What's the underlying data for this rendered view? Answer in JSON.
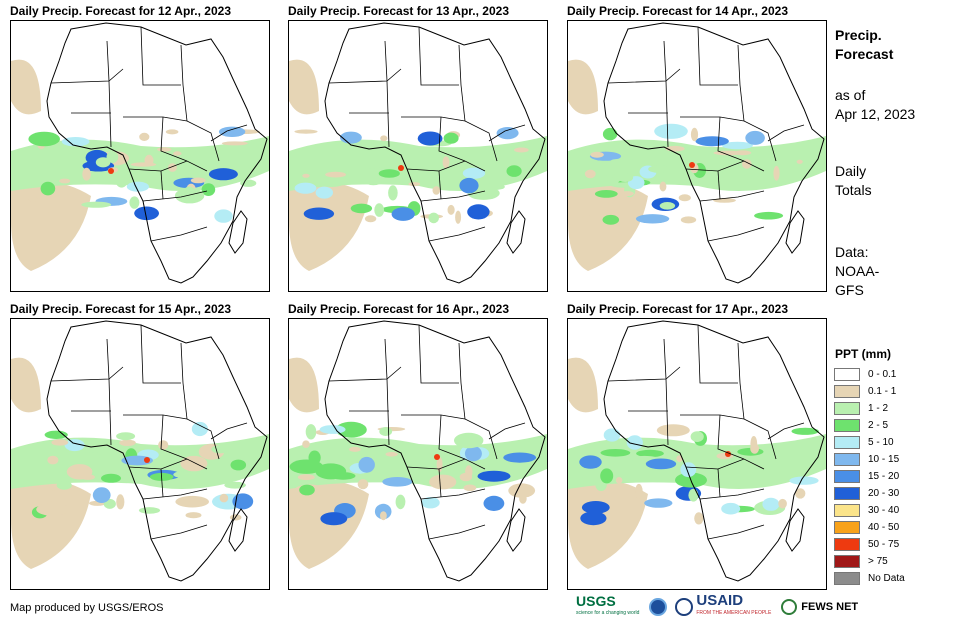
{
  "panels": [
    {
      "title": "Daily Precip. Forecast for 12 Apr., 2023"
    },
    {
      "title": "Daily Precip. Forecast for 13 Apr., 2023"
    },
    {
      "title": "Daily Precip. Forecast for 14 Apr., 2023"
    },
    {
      "title": "Daily Precip. Forecast for 15 Apr., 2023"
    },
    {
      "title": "Daily Precip. Forecast for 16 Apr., 2023"
    },
    {
      "title": "Daily Precip. Forecast for 17 Apr., 2023"
    }
  ],
  "sidebar": {
    "heading_line1": "Precip.",
    "heading_line2": "Forecast",
    "asof_line1": "as of",
    "asof_line2": "Apr 12, 2023",
    "totals_line1": "Daily",
    "totals_line2": "Totals",
    "source_line1": "Data:",
    "source_line2": "NOAA-",
    "source_line3": "GFS"
  },
  "legend": {
    "title": "PPT (mm)",
    "items": [
      {
        "label": "0 - 0.1",
        "color": "#ffffff"
      },
      {
        "label": "0.1 - 1",
        "color": "#e6d5b5"
      },
      {
        "label": "1 - 2",
        "color": "#b9f0b0"
      },
      {
        "label": "2 - 5",
        "color": "#6ee26e"
      },
      {
        "label": "5 - 10",
        "color": "#b4ecf5"
      },
      {
        "label": "10 - 15",
        "color": "#7fb8ee"
      },
      {
        "label": "15 - 20",
        "color": "#4a8fe6"
      },
      {
        "label": "20 - 30",
        "color": "#2060d8"
      },
      {
        "label": "30 - 40",
        "color": "#fbe48a"
      },
      {
        "label": "40 - 50",
        "color": "#f8a21a"
      },
      {
        "label": "50 - 75",
        "color": "#ee3a10"
      },
      {
        "label": "> 75",
        "color": "#a01818"
      },
      {
        "label": "No Data",
        "color": "#8c8c8c"
      }
    ]
  },
  "footer": {
    "credit": "Map produced by USGS/EROS",
    "logo_usgs": "USGS",
    "logo_usgs_tagline": "science for a changing world",
    "logo_usaid": "USAID",
    "logo_usaid_tagline": "FROM THE AMERICAN PEOPLE",
    "logo_fews": "FEWS NET"
  }
}
